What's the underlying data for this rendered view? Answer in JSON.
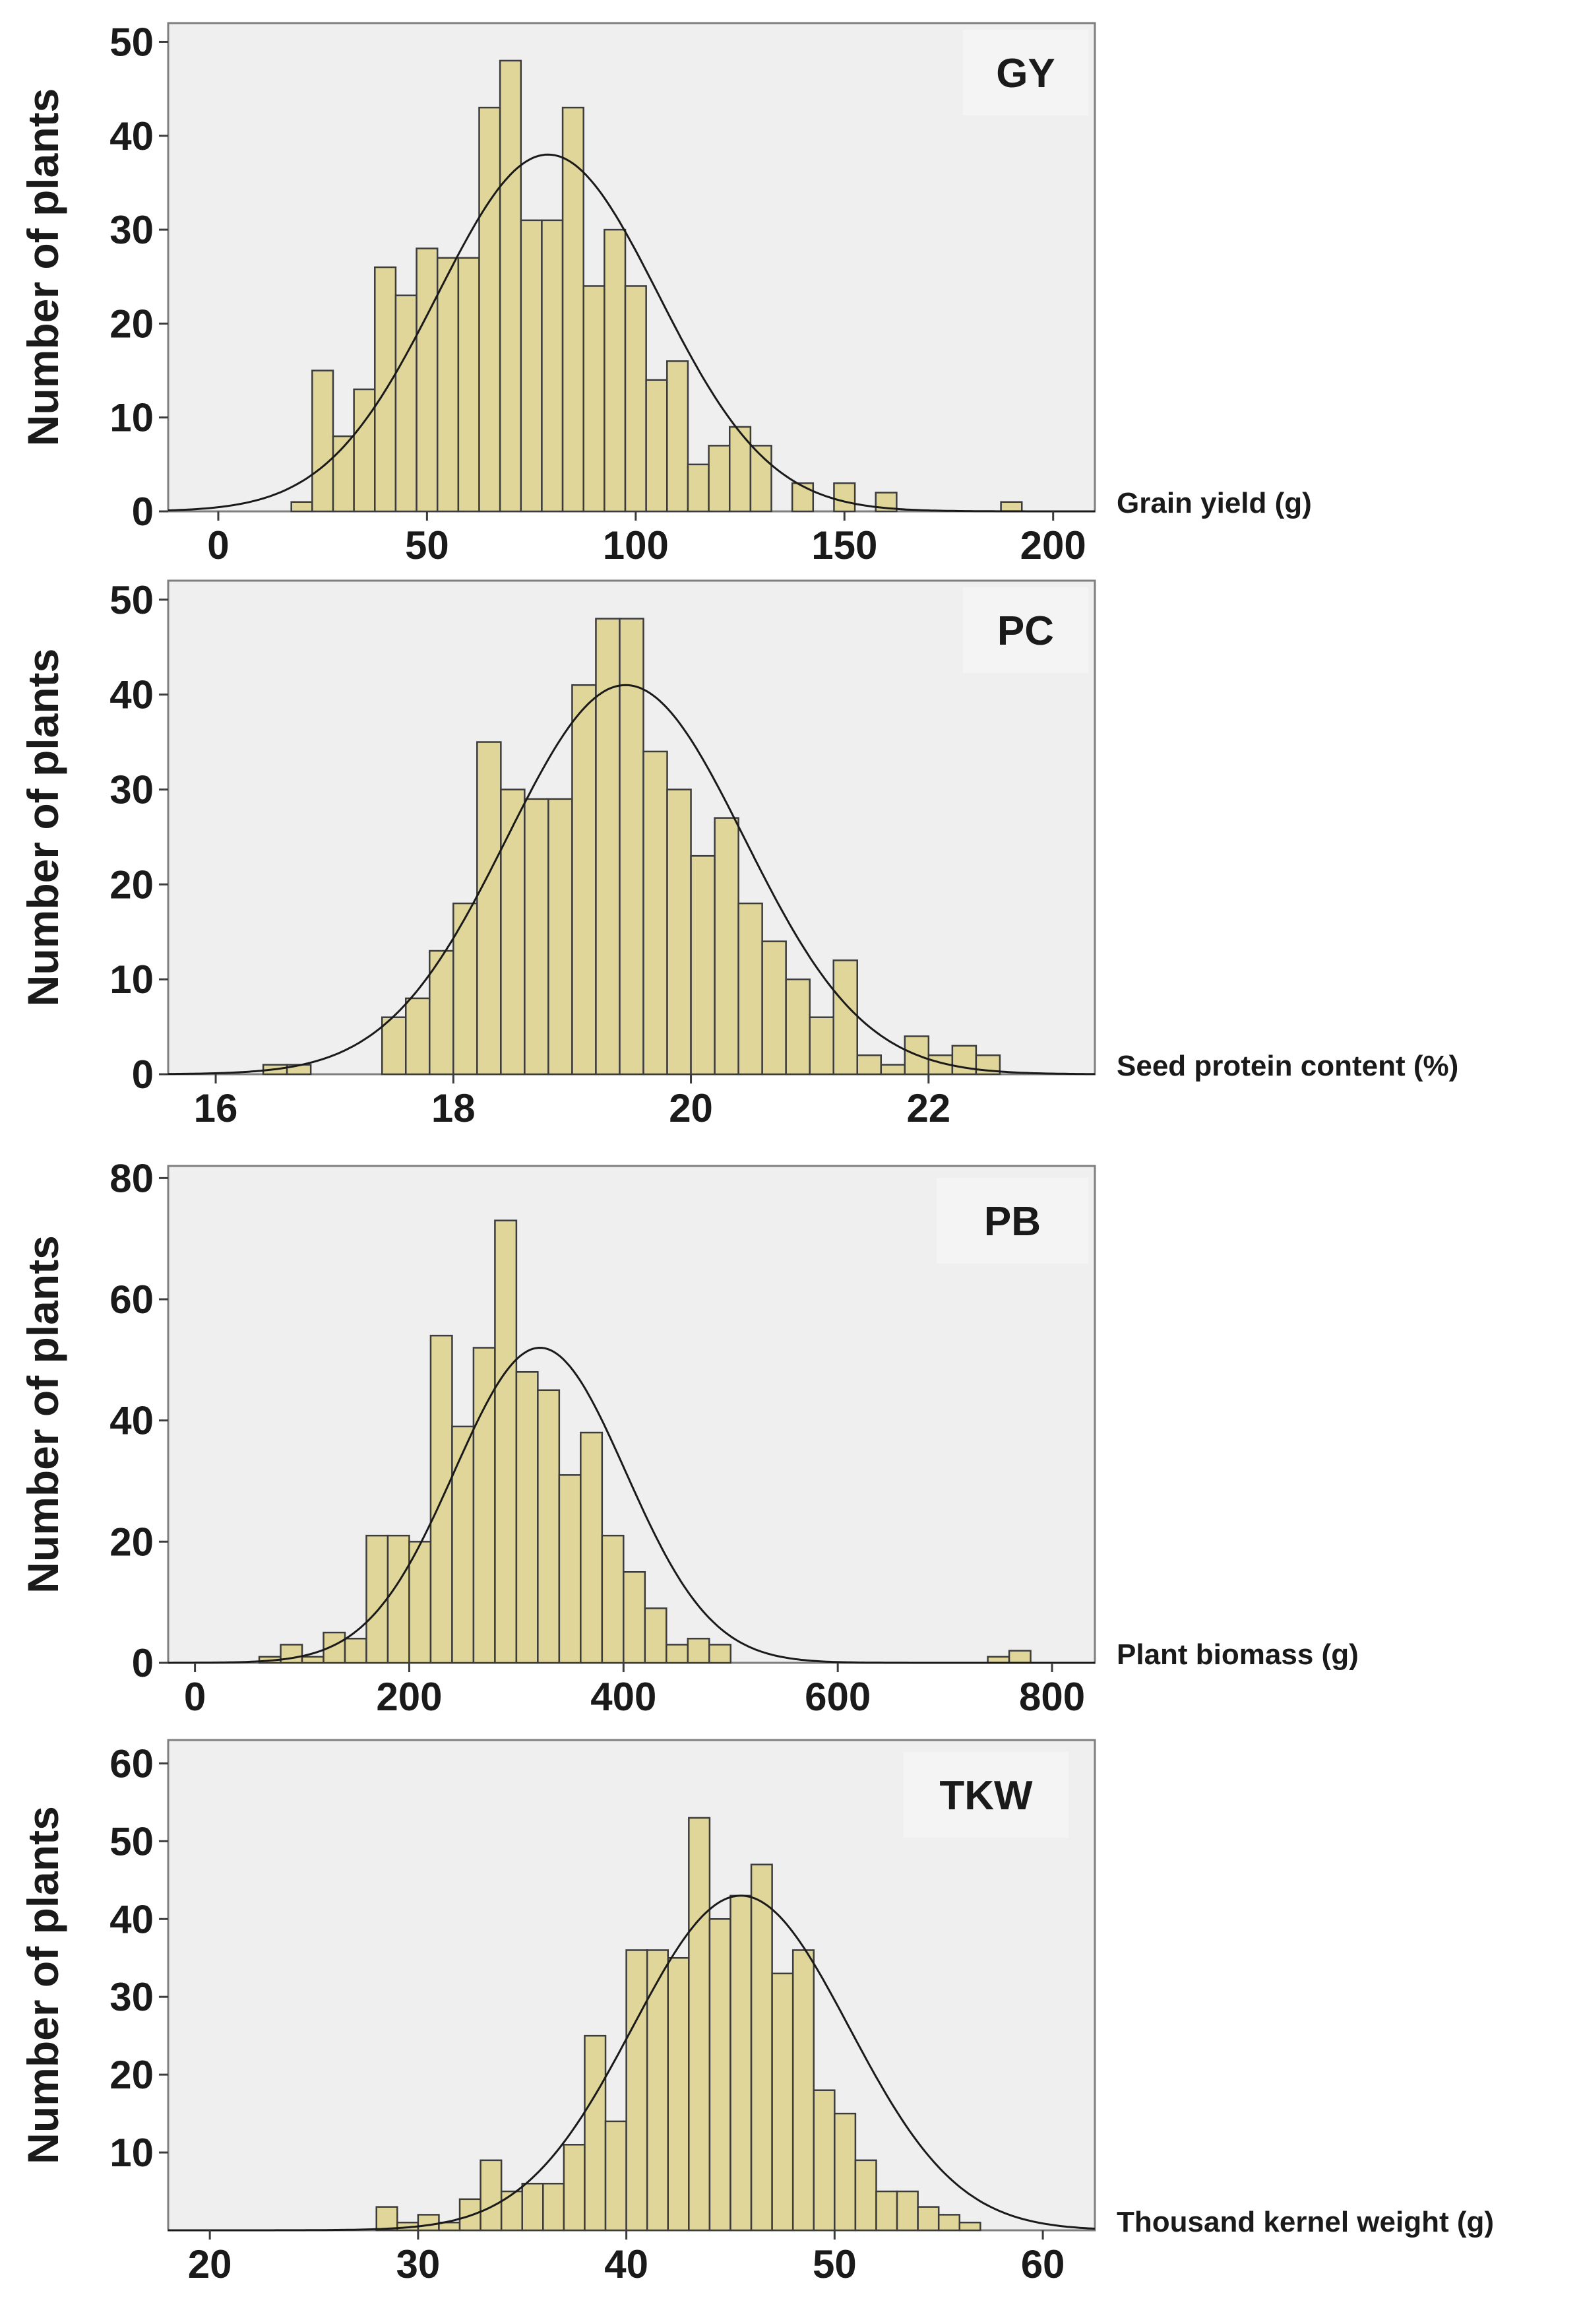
{
  "chart_data": [
    {
      "type": "bar",
      "title": "GY",
      "xlabel": "Grain yield (g)",
      "ylabel": "Number of plants",
      "xlim": [
        -12,
        210
      ],
      "ylim": [
        0,
        52
      ],
      "xticks": [
        0,
        50,
        100,
        150,
        200
      ],
      "yticks": [
        0,
        10,
        20,
        30,
        40,
        50
      ],
      "bin_width": 5,
      "bin_start": 17.5,
      "values": [
        1,
        15,
        8,
        13,
        26,
        23,
        28,
        27,
        27,
        43,
        48,
        31,
        31,
        43,
        24,
        30,
        24,
        14,
        16,
        5,
        7,
        9,
        7,
        0,
        3,
        0,
        3,
        0,
        2,
        0,
        0,
        0,
        0,
        0,
        1
      ],
      "normal_fit": {
        "mean": 79,
        "sd": 26.5,
        "peak": 38
      }
    },
    {
      "type": "bar",
      "title": "PC",
      "xlabel": "Seed protein content (%)",
      "ylabel": "Number of plants",
      "xlim": [
        15.6,
        23.4
      ],
      "ylim": [
        0,
        52
      ],
      "xticks": [
        16,
        18,
        20,
        22
      ],
      "yticks": [
        0,
        10,
        20,
        30,
        40,
        50
      ],
      "bin_width": 0.2,
      "bin_start": 16.4,
      "values": [
        1,
        1,
        0,
        0,
        0,
        6,
        8,
        13,
        18,
        35,
        30,
        29,
        29,
        41,
        48,
        48,
        34,
        30,
        23,
        27,
        18,
        14,
        10,
        6,
        12,
        2,
        1,
        4,
        2,
        3,
        2
      ],
      "normal_fit": {
        "mean": 19.45,
        "sd": 1.0,
        "peak": 41
      }
    },
    {
      "type": "bar",
      "title": "PB",
      "xlabel": "Plant biomass (g)",
      "ylabel": "Number of plants",
      "xlim": [
        -25,
        840
      ],
      "ylim": [
        0,
        82
      ],
      "xticks": [
        0,
        200,
        400,
        600,
        800
      ],
      "yticks": [
        0,
        20,
        40,
        60,
        80
      ],
      "bin_width": 20,
      "bin_start": 60,
      "values": [
        1,
        3,
        1,
        5,
        4,
        21,
        21,
        20,
        54,
        39,
        52,
        73,
        48,
        45,
        31,
        38,
        21,
        15,
        9,
        3,
        4,
        3,
        0,
        0,
        0,
        0,
        0,
        0,
        0,
        0,
        0,
        0,
        0,
        0,
        1,
        2
      ],
      "normal_fit": {
        "mean": 322,
        "sd": 80,
        "peak": 52
      }
    },
    {
      "type": "bar",
      "title": "TKW",
      "xlabel": "Thousand kernel weight (g)",
      "ylabel": "Number of plants",
      "xlim": [
        18,
        62.5
      ],
      "ylim": [
        0,
        63
      ],
      "xticks": [
        20,
        30,
        40,
        50,
        60
      ],
      "yticks": [
        10,
        20,
        30,
        40,
        50,
        60
      ],
      "bin_width": 1,
      "bin_start": 28,
      "values": [
        3,
        1,
        2,
        1,
        4,
        9,
        5,
        6,
        6,
        11,
        25,
        14,
        36,
        36,
        35,
        53,
        40,
        43,
        47,
        33,
        36,
        18,
        15,
        9,
        5,
        5,
        3,
        2,
        1
      ],
      "normal_fit": {
        "mean": 45.5,
        "sd": 5.2,
        "peak": 43
      }
    }
  ]
}
